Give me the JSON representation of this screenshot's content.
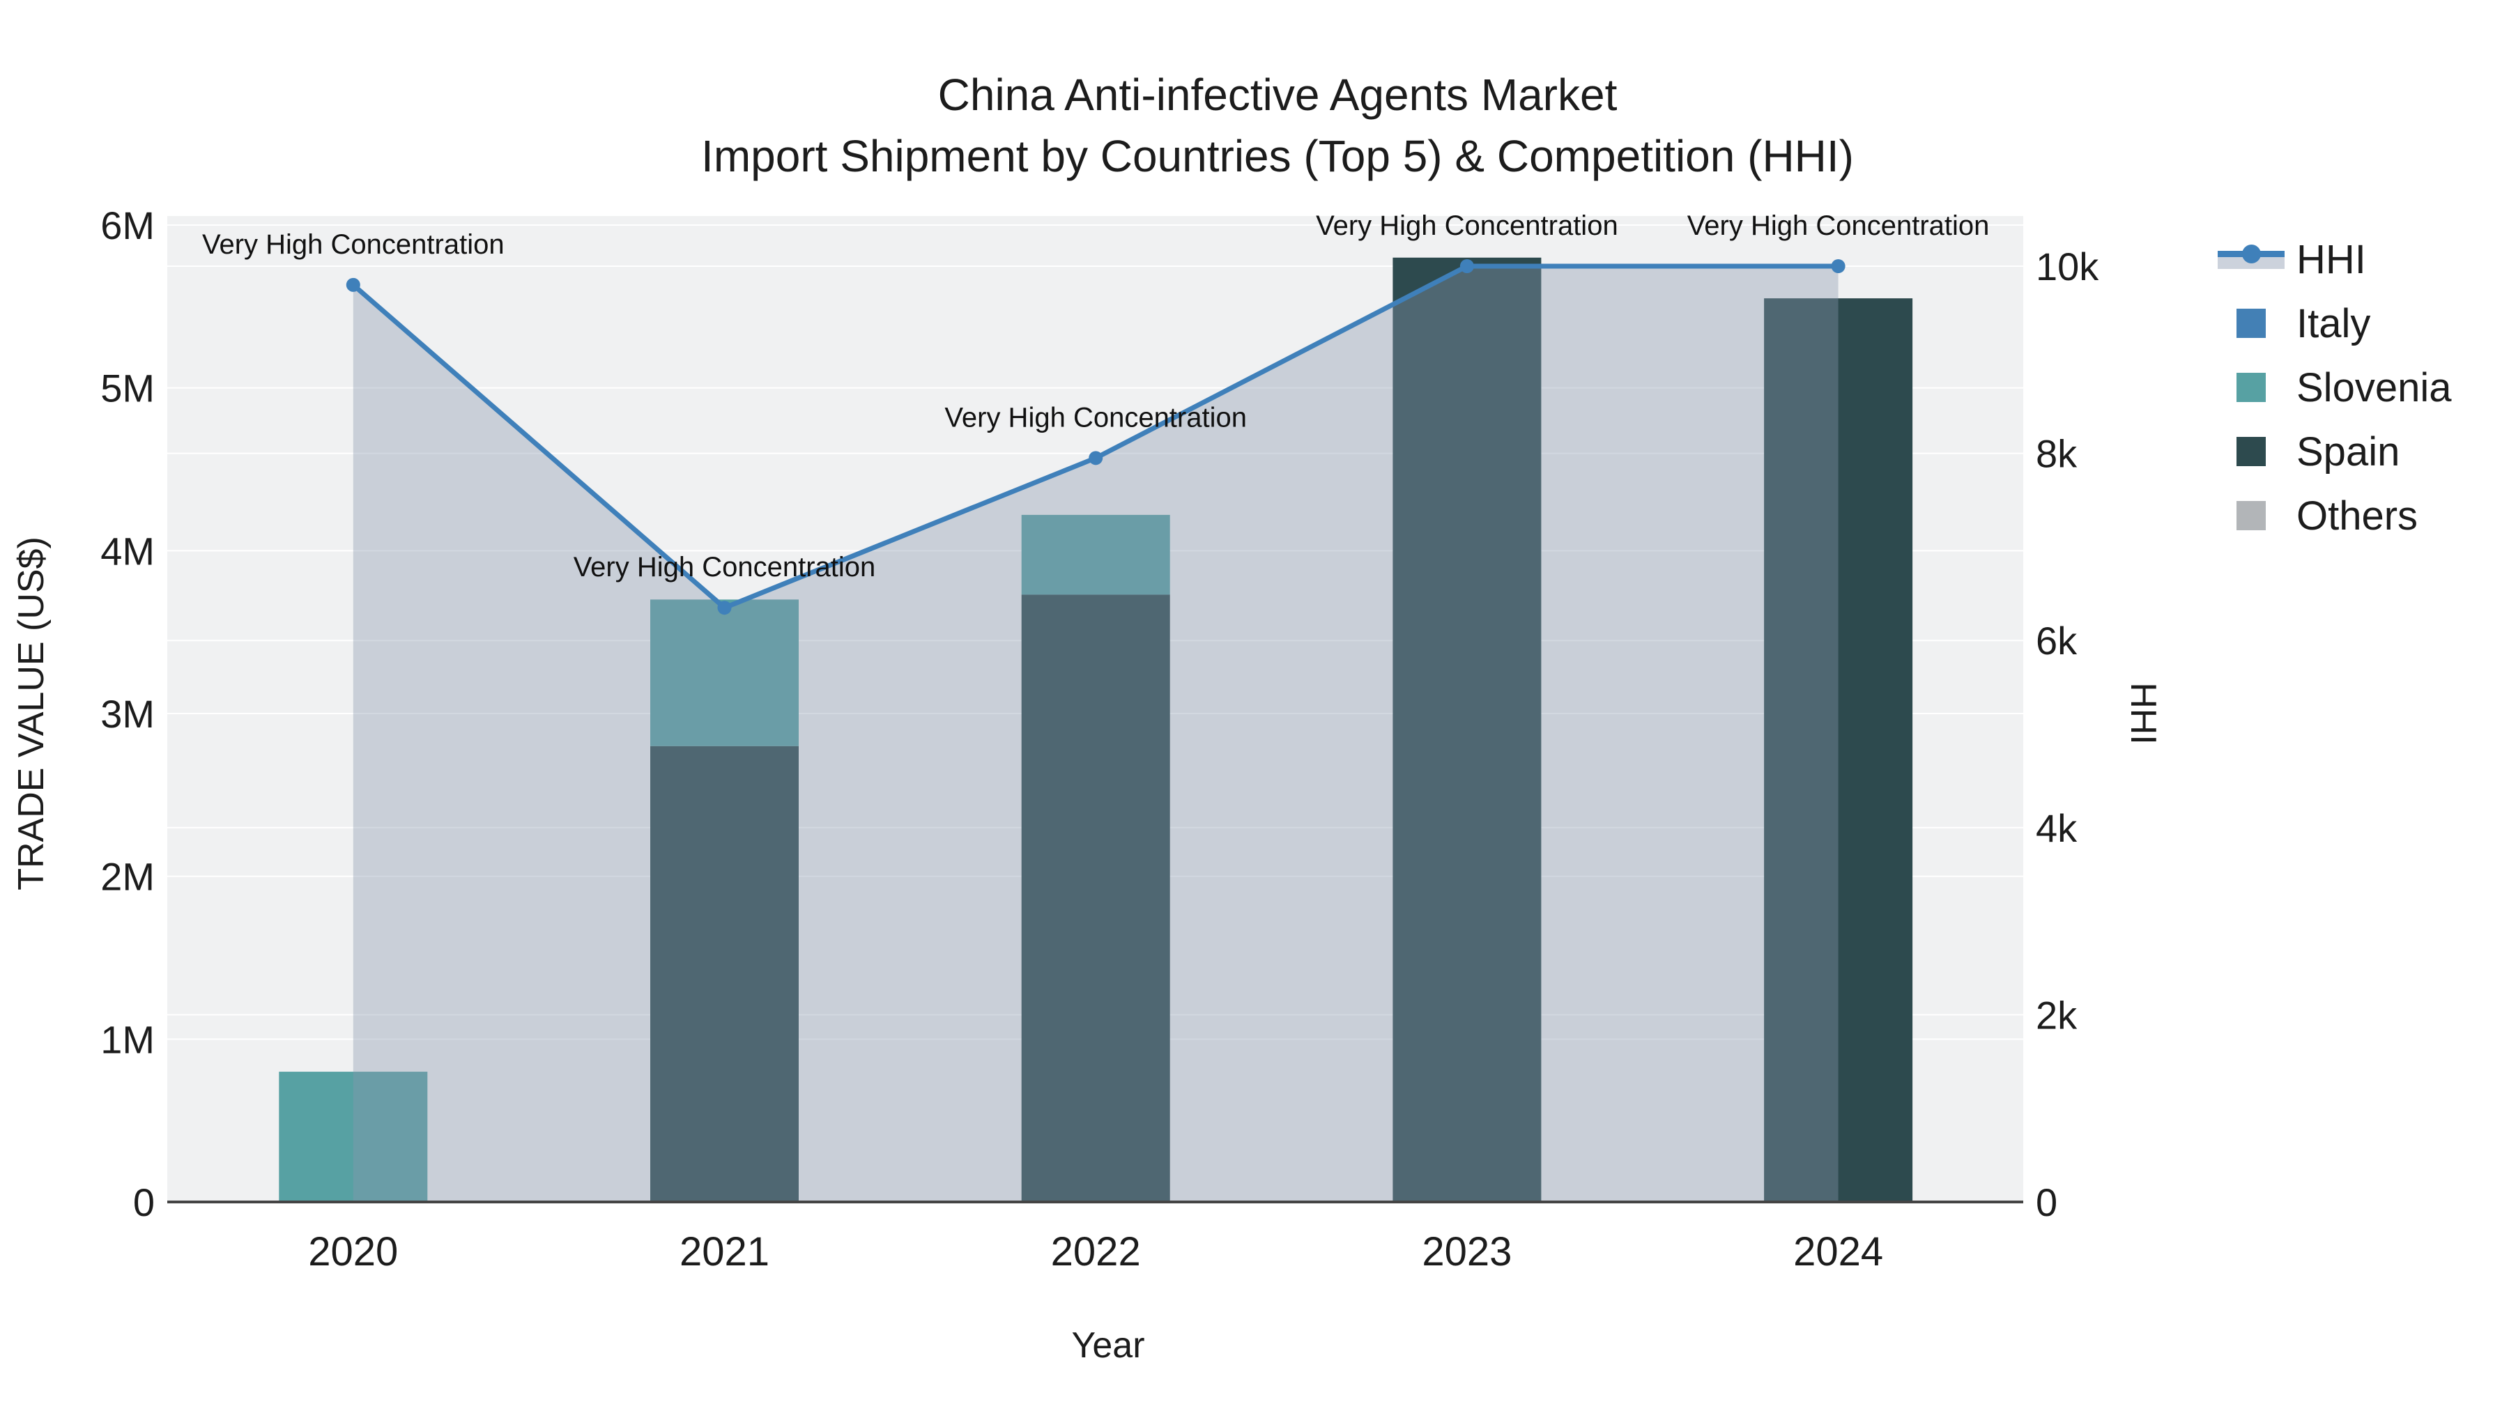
{
  "title": {
    "line1": "China Anti-infective Agents Market",
    "line2": "Import Shipment by Countries (Top 5) & Competition (HHI)"
  },
  "x_axis": {
    "title": "Year",
    "tick_labels": [
      "2020",
      "2021",
      "2022",
      "2023",
      "2024"
    ]
  },
  "y_left": {
    "title": "TRADE VALUE (US$)",
    "tick_labels": [
      "0",
      "1M",
      "2M",
      "3M",
      "4M",
      "5M",
      "6M"
    ],
    "tick_values": [
      0,
      1000000,
      2000000,
      3000000,
      4000000,
      5000000,
      6000000
    ],
    "range": [
      0,
      6000000
    ]
  },
  "y_right": {
    "title": "HHI",
    "tick_labels": [
      "0",
      "2k",
      "4k",
      "6k",
      "8k",
      "10k"
    ],
    "tick_values": [
      0,
      2000,
      4000,
      6000,
      8000,
      10000
    ],
    "range": [
      0,
      10000
    ]
  },
  "legend": {
    "items": [
      {
        "label": "HHI",
        "marker": "line-area",
        "color": "#3f80ba"
      },
      {
        "label": "Italy",
        "marker": "square",
        "color": "#4380b5"
      },
      {
        "label": "Slovenia",
        "marker": "square",
        "color": "#57a1a3"
      },
      {
        "label": "Spain",
        "marker": "square",
        "color": "#2d4a4e"
      },
      {
        "label": "Others",
        "marker": "square",
        "color": "#b2b5b8"
      }
    ]
  },
  "annotation_text": "Very High Concentration",
  "chart_data": {
    "type": "bar+line combo (stacked bars, dual y-axis)",
    "categories": [
      "2020",
      "2021",
      "2022",
      "2023",
      "2024"
    ],
    "bar_value_unit": "US$ trade value",
    "series": [
      {
        "name": "Italy",
        "type": "bar",
        "color": "#4380b5",
        "values": [
          0,
          0,
          0,
          0,
          0
        ],
        "visible_in_plot": false
      },
      {
        "name": "Slovenia",
        "type": "bar",
        "color": "#57a1a3",
        "values": [
          800000,
          900000,
          490000,
          0,
          0
        ]
      },
      {
        "name": "Spain",
        "type": "bar",
        "color": "#2d4a4e",
        "values": [
          0,
          2800000,
          3730000,
          5800000,
          5550000
        ]
      },
      {
        "name": "Others",
        "type": "bar",
        "color": "#b2b5b8",
        "values": [
          0,
          0,
          0,
          0,
          0
        ],
        "visible_in_plot": false
      },
      {
        "name": "HHI",
        "type": "line",
        "yaxis": "right",
        "color": "#3f80ba",
        "fill": "tozero",
        "fill_color": "rgba(137,152,174,0.38)",
        "values": [
          9800,
          6350,
          7950,
          10000,
          10000
        ]
      }
    ],
    "stack_order_bottom_to_top": [
      "Spain",
      "Slovenia"
    ],
    "annotations": [
      {
        "text": "Very High Concentration",
        "x": "2020",
        "series": "HHI",
        "y": 9800
      },
      {
        "text": "Very High Concentration",
        "x": "2021",
        "series": "HHI",
        "y": 6350
      },
      {
        "text": "Very High Concentration",
        "x": "2022",
        "series": "HHI",
        "y": 7950
      },
      {
        "text": "Very High Concentration",
        "x": "2023",
        "series": "HHI",
        "y": 10000
      },
      {
        "text": "Very High Concentration",
        "x": "2024",
        "series": "HHI",
        "y": 10000
      }
    ],
    "title": "China Anti-infective Agents Market — Import Shipment by Countries (Top 5) & Competition (HHI)",
    "xlabel": "Year",
    "ylabel_left": "TRADE VALUE (US$)",
    "ylabel_right": "HHI",
    "ylim_left": [
      0,
      6000000
    ],
    "ylim_right": [
      0,
      10000
    ],
    "grid": true,
    "legend_position": "right-outside"
  },
  "colors": {
    "plot_bg": "#f0f1f2",
    "figure_bg": "#ffffff",
    "grid": "#ffffff",
    "axis_line": "#444444",
    "text": "#1c1c1c",
    "area_fill": "rgba(137,152,174,0.38)",
    "hhi_line": "#3f80ba"
  }
}
